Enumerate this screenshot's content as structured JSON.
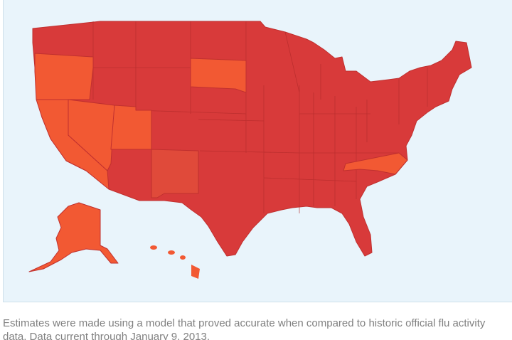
{
  "caption": "Estimates were made using a model that proved accurate when compared to historic official flu activity data. Data current through January 9, 2013."
}
